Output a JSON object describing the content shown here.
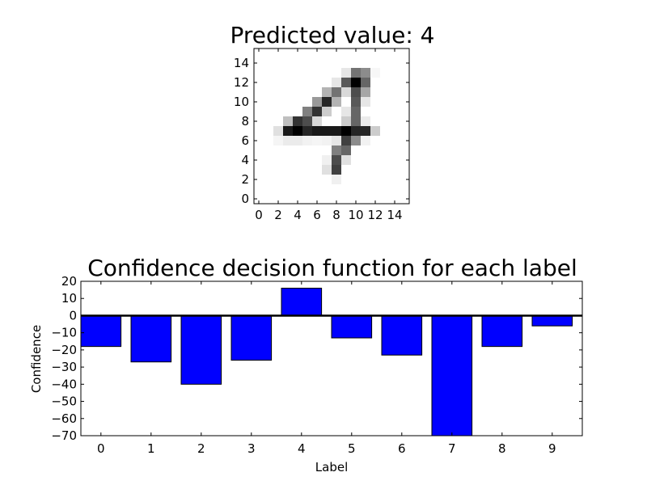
{
  "chart_data": [
    {
      "type": "heatmap",
      "title": "Predicted value: 4",
      "xticks": [
        0,
        2,
        4,
        6,
        8,
        10,
        12,
        14
      ],
      "yticks": [
        0,
        2,
        4,
        6,
        8,
        10,
        12,
        14
      ],
      "xlim": [
        -0.5,
        15.5
      ],
      "ylim": [
        15.5,
        -0.5
      ],
      "colormap": "gray_r",
      "pixels": [
        [
          0,
          0,
          0,
          0,
          0,
          0,
          0,
          0,
          0,
          0,
          0,
          0,
          0,
          0,
          0,
          0
        ],
        [
          0,
          0,
          0,
          0,
          0,
          0,
          0,
          0,
          0,
          0,
          0,
          0,
          0,
          0,
          0,
          0
        ],
        [
          0,
          0,
          0,
          0,
          0,
          0,
          0,
          0,
          0,
          0.1,
          0.55,
          0.45,
          0.03,
          0,
          0,
          0
        ],
        [
          0,
          0,
          0,
          0,
          0,
          0,
          0,
          0,
          0.1,
          0.65,
          1.0,
          0.6,
          0,
          0,
          0,
          0
        ],
        [
          0,
          0,
          0,
          0,
          0,
          0,
          0,
          0.3,
          0.55,
          0.15,
          0.7,
          0.35,
          0,
          0,
          0,
          0
        ],
        [
          0,
          0,
          0,
          0,
          0,
          0,
          0.4,
          0.85,
          0.3,
          0,
          0.65,
          0.1,
          0,
          0,
          0,
          0
        ],
        [
          0,
          0,
          0,
          0,
          0,
          0.5,
          0.8,
          0.2,
          0,
          0.1,
          0.6,
          0,
          0,
          0,
          0,
          0
        ],
        [
          0,
          0,
          0,
          0.25,
          0.8,
          0.7,
          0.15,
          0,
          0,
          0.2,
          0.6,
          0.08,
          0,
          0,
          0,
          0
        ],
        [
          0,
          0,
          0.12,
          0.9,
          1.0,
          0.85,
          0.9,
          0.9,
          0.9,
          1.0,
          0.85,
          0.85,
          0.2,
          0,
          0,
          0
        ],
        [
          0,
          0,
          0.04,
          0.08,
          0.08,
          0.05,
          0.04,
          0.05,
          0.1,
          0.75,
          0.45,
          0.05,
          0,
          0,
          0,
          0
        ],
        [
          0,
          0,
          0,
          0,
          0,
          0,
          0,
          0,
          0.5,
          0.6,
          0,
          0,
          0,
          0,
          0,
          0
        ],
        [
          0,
          0,
          0,
          0,
          0,
          0,
          0,
          0.06,
          0.7,
          0.12,
          0,
          0,
          0,
          0,
          0,
          0
        ],
        [
          0,
          0,
          0,
          0,
          0,
          0,
          0,
          0.12,
          0.75,
          0,
          0,
          0,
          0,
          0,
          0,
          0
        ],
        [
          0,
          0,
          0,
          0,
          0,
          0,
          0,
          0,
          0.06,
          0,
          0,
          0,
          0,
          0,
          0,
          0
        ],
        [
          0,
          0,
          0,
          0,
          0,
          0,
          0,
          0,
          0,
          0,
          0,
          0,
          0,
          0,
          0,
          0
        ],
        [
          0,
          0,
          0,
          0,
          0,
          0,
          0,
          0,
          0,
          0,
          0,
          0,
          0,
          0,
          0,
          0
        ]
      ]
    },
    {
      "type": "bar",
      "title": "Confidence decision function for each label",
      "xlabel": "Label",
      "ylabel": "Confidence",
      "categories": [
        "0",
        "1",
        "2",
        "3",
        "4",
        "5",
        "6",
        "7",
        "8",
        "9"
      ],
      "values": [
        -18,
        -27,
        -40,
        -26,
        16,
        -13,
        -23,
        -70,
        -18,
        -6
      ],
      "ylim": [
        -70,
        20
      ],
      "xlim": [
        -0.4,
        9.6
      ],
      "yticks": [
        20,
        10,
        0,
        -10,
        -20,
        -30,
        -40,
        -50,
        -60,
        -70
      ],
      "bar_color": "#0000ff",
      "zero_line": true,
      "grid": false,
      "legend": "none"
    }
  ]
}
